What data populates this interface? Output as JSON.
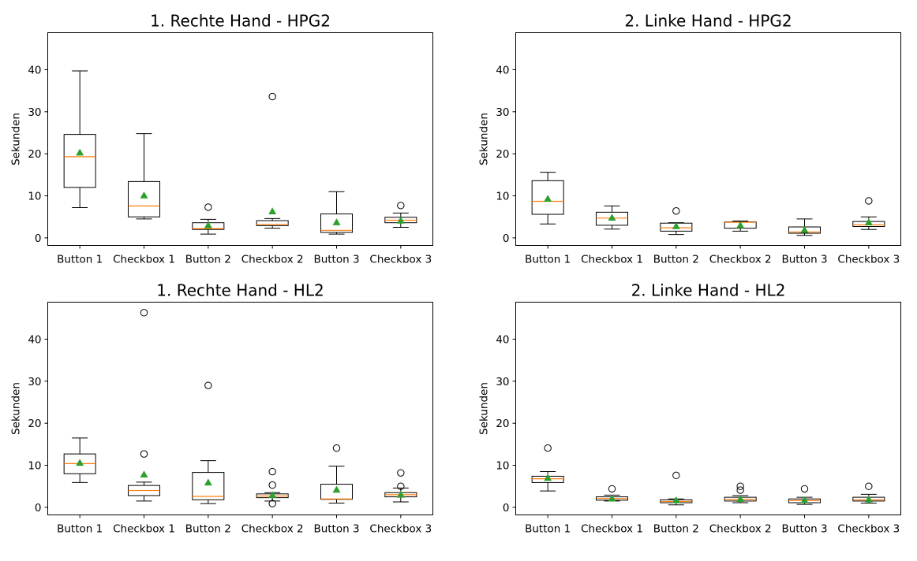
{
  "chart_data": [
    {
      "type": "box",
      "title": "1. Rechte Hand - HPG2",
      "ylabel": "Sekunden",
      "xlabel": "",
      "categories": [
        "Button 1",
        "Checkbox 1",
        "Button 2",
        "Checkbox 2",
        "Button 3",
        "Checkbox 3"
      ],
      "ylim": [
        -1.8,
        48.8
      ],
      "yticks": [
        0,
        10,
        20,
        30,
        40
      ],
      "boxes": [
        {
          "whislo": 7.2,
          "q1": 12.0,
          "med": 19.3,
          "q3": 24.6,
          "whishi": 39.7,
          "mean": 20.3,
          "fliers": []
        },
        {
          "whislo": 4.5,
          "q1": 5.0,
          "med": 7.6,
          "q3": 13.4,
          "whishi": 24.8,
          "mean": 10.1,
          "fliers": []
        },
        {
          "whislo": 0.9,
          "q1": 2.0,
          "med": 2.2,
          "q3": 3.6,
          "whishi": 4.4,
          "mean": 3.0,
          "fliers": [
            7.3
          ]
        },
        {
          "whislo": 2.3,
          "q1": 2.9,
          "med": 3.2,
          "q3": 4.1,
          "whishi": 4.6,
          "mean": 6.3,
          "fliers": [
            33.6
          ]
        },
        {
          "whislo": 0.9,
          "q1": 1.3,
          "med": 1.8,
          "q3": 5.7,
          "whishi": 11.0,
          "mean": 3.7,
          "fliers": []
        },
        {
          "whislo": 2.5,
          "q1": 3.6,
          "med": 4.2,
          "q3": 4.9,
          "whishi": 5.9,
          "mean": 4.1,
          "fliers": [
            7.7
          ]
        }
      ]
    },
    {
      "type": "box",
      "title": "2. Linke Hand - HPG2",
      "ylabel": "Sekunden",
      "xlabel": "",
      "categories": [
        "Button 1",
        "Checkbox 1",
        "Button 2",
        "Checkbox 2",
        "Button 3",
        "Checkbox 3"
      ],
      "ylim": [
        -1.8,
        48.8
      ],
      "yticks": [
        0,
        10,
        20,
        30,
        40
      ],
      "boxes": [
        {
          "whislo": 3.3,
          "q1": 5.6,
          "med": 8.7,
          "q3": 13.6,
          "whishi": 15.6,
          "mean": 9.3,
          "fliers": []
        },
        {
          "whislo": 2.1,
          "q1": 3.0,
          "med": 4.7,
          "q3": 6.1,
          "whishi": 7.6,
          "mean": 4.8,
          "fliers": []
        },
        {
          "whislo": 0.8,
          "q1": 1.6,
          "med": 2.4,
          "q3": 3.5,
          "whishi": 3.6,
          "mean": 2.8,
          "fliers": [
            6.4
          ]
        },
        {
          "whislo": 1.6,
          "q1": 2.3,
          "med": 3.7,
          "q3": 3.8,
          "whishi": 4.0,
          "mean": 3.0,
          "fliers": []
        },
        {
          "whislo": 0.6,
          "q1": 1.1,
          "med": 1.4,
          "q3": 2.6,
          "whishi": 4.5,
          "mean": 1.9,
          "fliers": []
        },
        {
          "whislo": 2.0,
          "q1": 2.7,
          "med": 3.1,
          "q3": 3.9,
          "whishi": 5.0,
          "mean": 3.7,
          "fliers": [
            8.8
          ]
        }
      ]
    },
    {
      "type": "box",
      "title": "1. Rechte Hand - HL2",
      "ylabel": "Sekunden",
      "xlabel": "",
      "categories": [
        "Button 1",
        "Checkbox 1",
        "Button 2",
        "Checkbox 2",
        "Button 3",
        "Checkbox 3"
      ],
      "ylim": [
        -1.8,
        48.8
      ],
      "yticks": [
        0,
        10,
        20,
        30,
        40
      ],
      "boxes": [
        {
          "whislo": 5.9,
          "q1": 8.0,
          "med": 10.4,
          "q3": 12.7,
          "whishi": 16.5,
          "mean": 10.6,
          "fliers": []
        },
        {
          "whislo": 1.5,
          "q1": 2.8,
          "med": 4.0,
          "q3": 5.2,
          "whishi": 6.0,
          "mean": 7.8,
          "fliers": [
            12.7,
            46.3
          ]
        },
        {
          "whislo": 0.9,
          "q1": 1.8,
          "med": 2.6,
          "q3": 8.3,
          "whishi": 11.1,
          "mean": 5.9,
          "fliers": [
            29.0
          ]
        },
        {
          "whislo": 1.5,
          "q1": 2.3,
          "med": 2.7,
          "q3": 3.2,
          "whishi": 3.5,
          "mean": 2.9,
          "fliers": [
            8.5,
            5.3,
            0.9
          ]
        },
        {
          "whislo": 1.0,
          "q1": 1.9,
          "med": 2.0,
          "q3": 5.5,
          "whishi": 9.8,
          "mean": 4.2,
          "fliers": [
            14.1
          ]
        },
        {
          "whislo": 1.3,
          "q1": 2.5,
          "med": 3.0,
          "q3": 3.5,
          "whishi": 4.6,
          "mean": 3.0,
          "fliers": [
            8.2,
            5.0
          ]
        }
      ]
    },
    {
      "type": "box",
      "title": "2. Linke Hand - HL2",
      "ylabel": "Sekunden",
      "xlabel": "",
      "categories": [
        "Button 1",
        "Checkbox 1",
        "Button 2",
        "Checkbox 2",
        "Button 3",
        "Checkbox 3"
      ],
      "ylim": [
        -1.8,
        48.8
      ],
      "yticks": [
        0,
        10,
        20,
        30,
        40
      ],
      "boxes": [
        {
          "whislo": 3.9,
          "q1": 5.9,
          "med": 6.8,
          "q3": 7.4,
          "whishi": 8.5,
          "mean": 7.0,
          "fliers": [
            14.1
          ]
        },
        {
          "whislo": 1.5,
          "q1": 1.7,
          "med": 2.1,
          "q3": 2.5,
          "whishi": 2.9,
          "mean": 2.1,
          "fliers": [
            4.4
          ]
        },
        {
          "whislo": 0.6,
          "q1": 1.1,
          "med": 1.4,
          "q3": 1.8,
          "whishi": 2.0,
          "mean": 1.7,
          "fliers": [
            7.6
          ]
        },
        {
          "whislo": 1.1,
          "q1": 1.5,
          "med": 1.9,
          "q3": 2.4,
          "whishi": 2.8,
          "mean": 2.0,
          "fliers": [
            4.1,
            5.0
          ]
        },
        {
          "whislo": 0.7,
          "q1": 1.1,
          "med": 1.6,
          "q3": 2.0,
          "whishi": 2.4,
          "mean": 1.7,
          "fliers": [
            4.4
          ]
        },
        {
          "whislo": 1.0,
          "q1": 1.5,
          "med": 1.8,
          "q3": 2.4,
          "whishi": 3.1,
          "mean": 1.9,
          "fliers": [
            5.0
          ]
        }
      ]
    }
  ],
  "colors": {
    "median": "#ff7f0e",
    "mean": "#2ca02c",
    "box": "#000000",
    "flier": "#000000"
  }
}
